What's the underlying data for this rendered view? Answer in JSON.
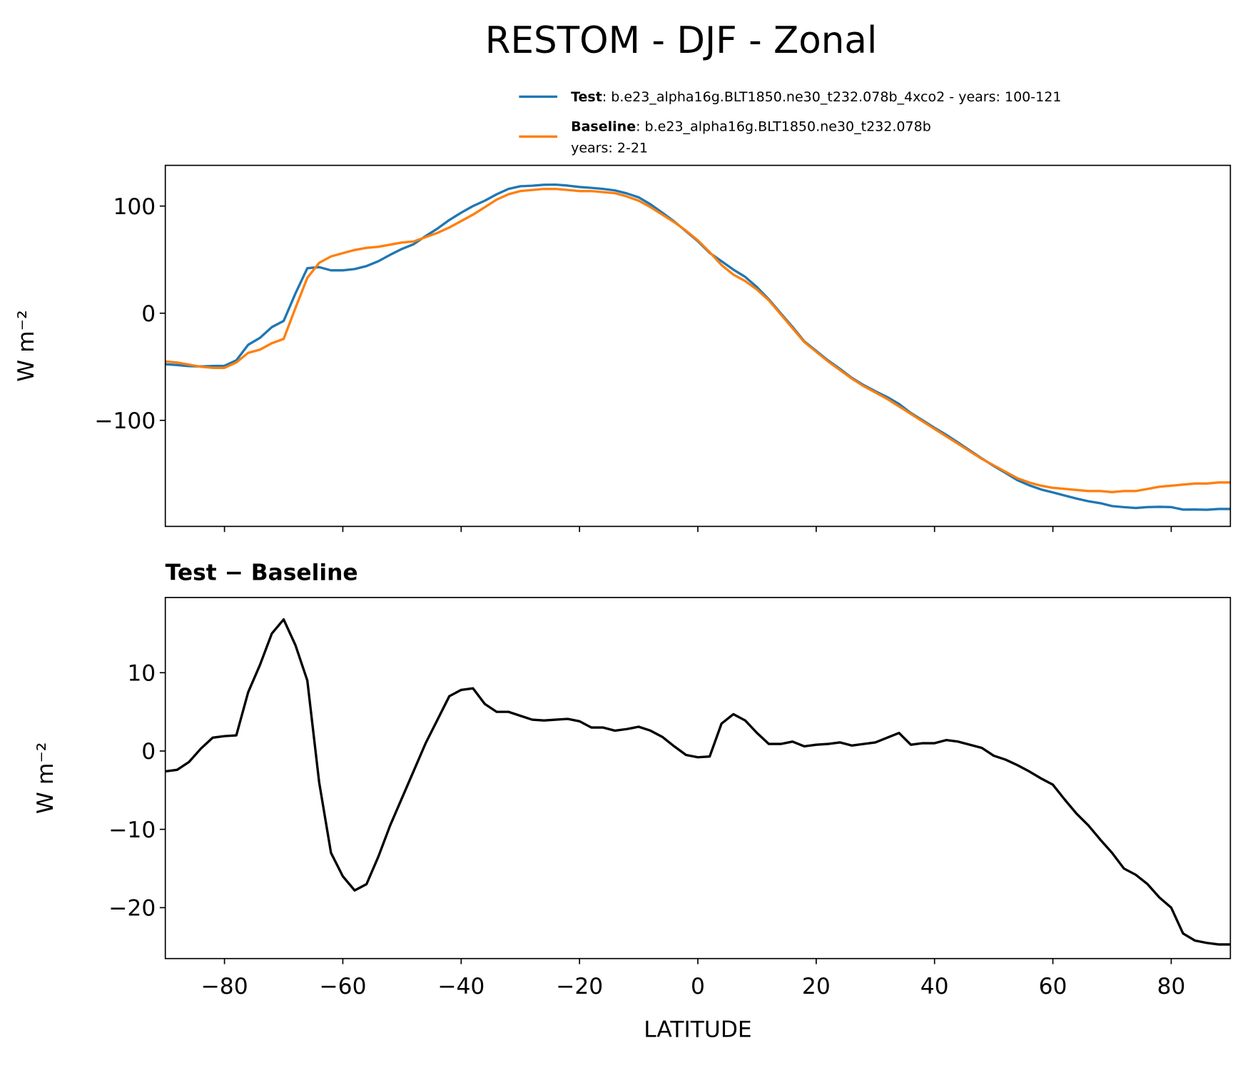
{
  "chart_data": [
    {
      "type": "line",
      "title": "RESTOM - DJF - Zonal",
      "ylabel": "W m⁻²",
      "x": [
        -90,
        -88,
        -86,
        -84,
        -82,
        -80,
        -78,
        -76,
        -74,
        -72,
        -70,
        -68,
        -66,
        -64,
        -62,
        -60,
        -58,
        -56,
        -54,
        -52,
        -50,
        -48,
        -46,
        -44,
        -42,
        -40,
        -38,
        -36,
        -34,
        -32,
        -30,
        -28,
        -26,
        -24,
        -22,
        -20,
        -18,
        -16,
        -14,
        -12,
        -10,
        -8,
        -6,
        -4,
        -2,
        0,
        2,
        4,
        6,
        8,
        10,
        12,
        14,
        16,
        18,
        20,
        22,
        24,
        26,
        28,
        30,
        32,
        34,
        36,
        38,
        40,
        42,
        44,
        46,
        48,
        50,
        52,
        54,
        56,
        58,
        60,
        62,
        64,
        66,
        68,
        70,
        72,
        74,
        76,
        78,
        80,
        82,
        84,
        86,
        88,
        90
      ],
      "series": [
        {
          "name": "Test",
          "detail": [
            ": b.e23_alpha16g.BLT1850.ne30_t232.078b_4xco2 - years: 100-121"
          ],
          "color": "#1f77b4",
          "values": [
            -47.6,
            -48.4,
            -49.4,
            -49.7,
            -49.3,
            -49.1,
            -44,
            -29.5,
            -23,
            -13,
            -7.2,
            18.5,
            42,
            43,
            40,
            40,
            41.2,
            44,
            48.5,
            54.5,
            60,
            64.5,
            72,
            79,
            87,
            93.8,
            100,
            105,
            111,
            116,
            118.5,
            119,
            119.9,
            120,
            119.1,
            117.8,
            117,
            116,
            114.6,
            111.8,
            108.1,
            101.6,
            93.8,
            85.6,
            76.5,
            67.2,
            56.3,
            48.5,
            40.7,
            33.9,
            24.3,
            12.9,
            -0.1,
            -12.8,
            -26.4,
            -35.2,
            -44.1,
            -51.9,
            -60.3,
            -67.1,
            -72.9,
            -78.3,
            -84.7,
            -93.2,
            -100,
            -107,
            -113.6,
            -120.8,
            -128.2,
            -135.6,
            -142.6,
            -149.1,
            -155.8,
            -160.6,
            -164.5,
            -167.3,
            -170.2,
            -173,
            -175.5,
            -177.3,
            -180,
            -181,
            -181.8,
            -181,
            -180.7,
            -181,
            -183.3,
            -183.2,
            -183.5,
            -182.7,
            -182.7
          ]
        },
        {
          "name": "Baseline",
          "detail": [
            ": b.e23_alpha16g.BLT1850.ne30_t232.078b",
            "years: 2-21"
          ],
          "color": "#ff7f0e",
          "values": [
            -45,
            -46,
            -48,
            -50,
            -51,
            -51,
            -46,
            -37,
            -34,
            -28,
            -24,
            5,
            33,
            47,
            53,
            56,
            59,
            61,
            62,
            64,
            66,
            67,
            71,
            75,
            80,
            86,
            92,
            99,
            106,
            111,
            114,
            115,
            116,
            116,
            115,
            114,
            114,
            113,
            112,
            109,
            105,
            99,
            92,
            85,
            77,
            68,
            57,
            45,
            36,
            30,
            22,
            12,
            -1,
            -14,
            -27,
            -36,
            -45,
            -53,
            -61,
            -68,
            -74,
            -80,
            -87,
            -94,
            -101,
            -108,
            -115,
            -122,
            -129,
            -136,
            -142,
            -148,
            -154,
            -158,
            -161,
            -163,
            -164,
            -165,
            -166,
            -166,
            -167,
            -166,
            -166,
            -164,
            -162,
            -161,
            -160,
            -159,
            -159,
            -158,
            -158
          ]
        }
      ],
      "xlim": [
        -90,
        90
      ],
      "xticks": [
        -80,
        -60,
        -40,
        -20,
        0,
        20,
        40,
        60,
        80
      ],
      "xticklabels": false,
      "ylim": [
        -199,
        138
      ],
      "yticks": [
        {
          "value": -100,
          "label": "−100"
        },
        0,
        100
      ]
    },
    {
      "type": "line",
      "title": "Test − Baseline",
      "xlabel": "LATITUDE",
      "ylabel": "W m⁻²",
      "color": "#000000",
      "x": [
        -90,
        -88,
        -86,
        -84,
        -82,
        -80,
        -78,
        -76,
        -74,
        -72,
        -70,
        -68,
        -66,
        -64,
        -62,
        -60,
        -58,
        -56,
        -54,
        -52,
        -50,
        -48,
        -46,
        -44,
        -42,
        -40,
        -38,
        -36,
        -34,
        -32,
        -30,
        -28,
        -26,
        -24,
        -22,
        -20,
        -18,
        -16,
        -14,
        -12,
        -10,
        -8,
        -6,
        -4,
        -2,
        0,
        2,
        4,
        6,
        8,
        10,
        12,
        14,
        16,
        18,
        20,
        22,
        24,
        26,
        28,
        30,
        32,
        34,
        36,
        38,
        40,
        42,
        44,
        46,
        48,
        50,
        52,
        54,
        56,
        58,
        60,
        62,
        64,
        66,
        68,
        70,
        72,
        74,
        76,
        78,
        80,
        82,
        84,
        86,
        88,
        90
      ],
      "values": [
        -2.6,
        -2.4,
        -1.4,
        0.3,
        1.7,
        1.9,
        2,
        7.5,
        11,
        15,
        16.8,
        13.5,
        9,
        -4,
        -13,
        -16,
        -17.8,
        -17,
        -13.5,
        -9.5,
        -6,
        -2.5,
        1,
        4,
        7,
        7.8,
        8,
        6,
        5,
        5,
        4.5,
        4,
        3.9,
        4,
        4.1,
        3.8,
        3,
        3,
        2.6,
        2.8,
        3.1,
        2.6,
        1.8,
        0.6,
        -0.5,
        -0.8,
        -0.7,
        3.5,
        4.7,
        3.9,
        2.3,
        0.9,
        0.9,
        1.2,
        0.6,
        0.8,
        0.9,
        1.1,
        0.7,
        0.9,
        1.1,
        1.7,
        2.3,
        0.8,
        1,
        1,
        1.4,
        1.2,
        0.8,
        0.4,
        -0.6,
        -1.1,
        -1.8,
        -2.6,
        -3.5,
        -4.3,
        -6.2,
        -8,
        -9.5,
        -11.3,
        -13,
        -15,
        -15.8,
        -17,
        -18.7,
        -20,
        -23.3,
        -24.2,
        -24.5,
        -24.7,
        -24.7
      ],
      "xlim": [
        -90,
        90
      ],
      "xticks": [
        {
          "value": -80,
          "label": "−80"
        },
        {
          "value": -60,
          "label": "−60"
        },
        {
          "value": -40,
          "label": "−40"
        },
        {
          "value": -20,
          "label": "−20"
        },
        0,
        20,
        40,
        60,
        80
      ],
      "xticklabels": true,
      "ylim": [
        -26.5,
        19.6
      ],
      "yticks": [
        {
          "value": -20,
          "label": "−20"
        },
        {
          "value": -10,
          "label": "−10"
        },
        0,
        10
      ]
    }
  ]
}
